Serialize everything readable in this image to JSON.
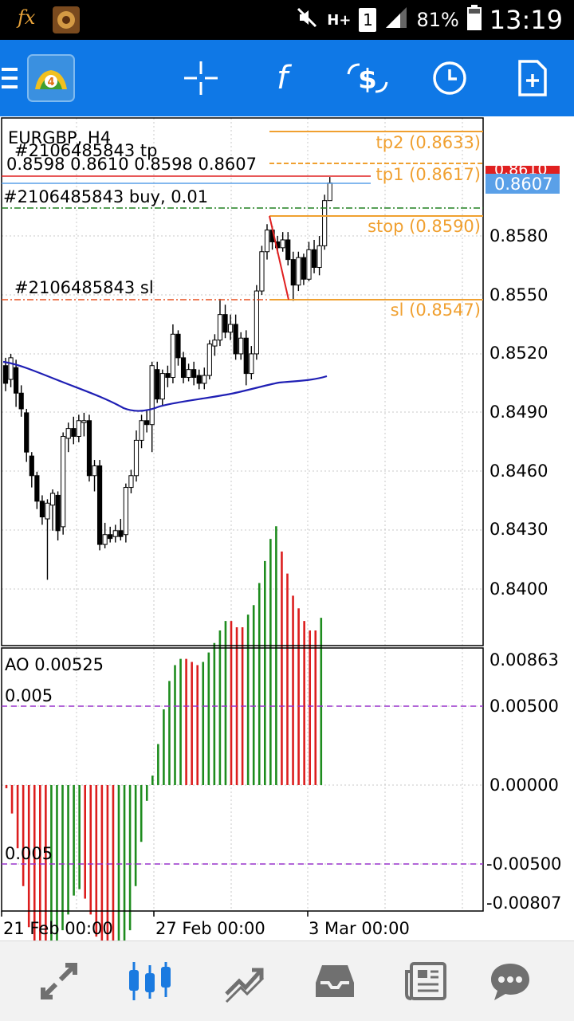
{
  "status_bar": {
    "fx_label": "fx",
    "battery": "81%",
    "time": "13:19",
    "sim": "1",
    "network": "H+"
  },
  "toolbar": {
    "icons": [
      "menu-icon",
      "mt4-logo",
      "crosshair-icon",
      "function-icon",
      "trade-icon",
      "clock-icon",
      "new-order-icon"
    ]
  },
  "chart": {
    "symbol": "EURGBP, H4",
    "tp_label": "#2106485843 tp",
    "ohlc": "0.8598 0.8610 0.8598 0.8607",
    "order_label": "#2106485843 buy, 0.01",
    "sl_label": "#2106485843 sl",
    "tp2_label": "tp2 (0.8633)",
    "tp1_label": "tp1 (0.8617)",
    "stop_label": "stop (0.8590)",
    "sl_price_label": "sl (0.8547)",
    "current_price": "0.8607",
    "hidden_price": "0.8610",
    "price_ticks": [
      "0.8580",
      "0.8550",
      "0.8520",
      "0.8490",
      "0.8460",
      "0.8430",
      "0.8400"
    ],
    "colors": {
      "bull": "#ffffff",
      "bear": "#000000",
      "ma": "#1f1fb4",
      "tp": "#f0a030",
      "bid": "#e02020",
      "ask": "#5aa0e8",
      "order": "#208020"
    }
  },
  "indicator": {
    "label": "AO 0.00525",
    "level_upper_label": "0.005",
    "level_lower_label": "0.005",
    "ticks": [
      "0.00863",
      "0.00500",
      "0.00000",
      "-0.00500",
      "-0.00807"
    ],
    "colors": {
      "up": "#1e8c1e",
      "down": "#dc1e1e",
      "level": "#9932cc"
    }
  },
  "time_axis": [
    "21 Feb 00:00",
    "27 Feb 00:00",
    "3 Mar 00:00"
  ],
  "bottom_nav": {
    "items": [
      "quotes-icon",
      "chart-icon",
      "trade-icon",
      "history-icon",
      "news-icon",
      "chat-icon"
    ],
    "active": "chart-icon"
  }
}
